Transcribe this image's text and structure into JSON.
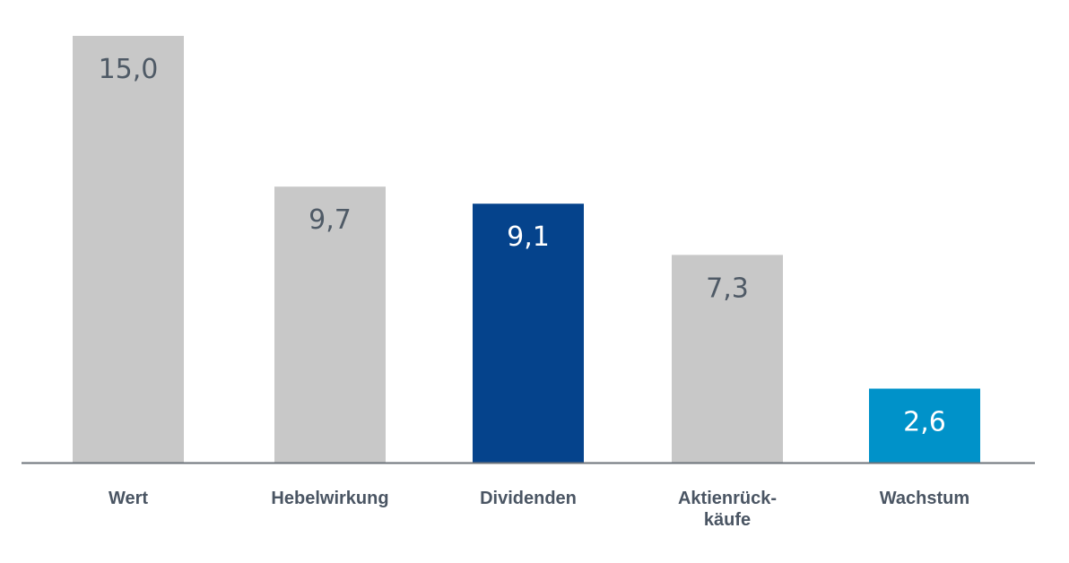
{
  "chart_data": {
    "type": "bar",
    "categories": [
      [
        "Wert"
      ],
      [
        "Hebelwirkung"
      ],
      [
        "Dividenden"
      ],
      [
        "Aktienrück-",
        "käufe"
      ],
      [
        "Wachstum"
      ]
    ],
    "values": [
      15.0,
      9.7,
      9.1,
      7.3,
      2.6
    ],
    "value_labels": [
      "15,0",
      "9,7",
      "9,1",
      "7,3",
      "2,6"
    ],
    "bar_colors": [
      "#c8c8c8",
      "#c8c8c8",
      "#05438c",
      "#c8c8c8",
      "#0092c9"
    ],
    "value_label_colors": [
      "#4f5a66",
      "#4f5a66",
      "#ffffff",
      "#4f5a66",
      "#ffffff"
    ],
    "axis_color": "#6d737a",
    "ylim": [
      0,
      15.0
    ],
    "grid": false,
    "title": "",
    "xlabel": "",
    "ylabel": ""
  }
}
